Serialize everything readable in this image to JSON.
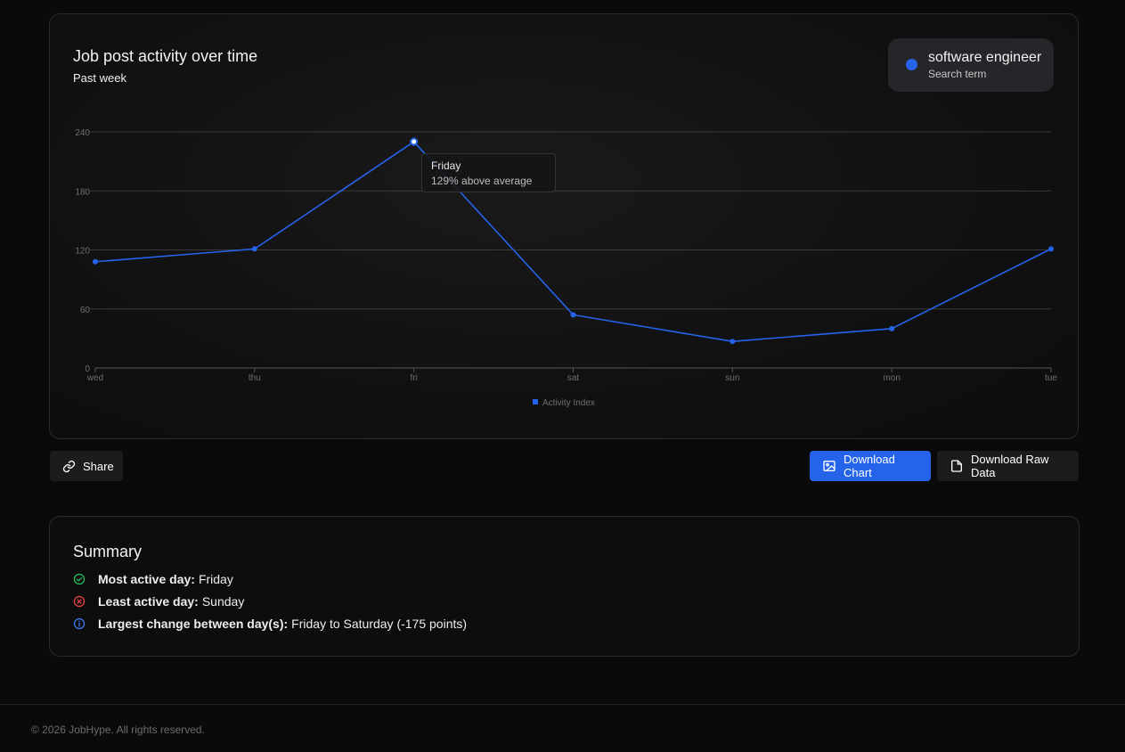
{
  "card": {
    "title": "Job post activity over time",
    "subtitle": "Past week",
    "search_term": "software engineer",
    "search_term_label": "Search term"
  },
  "tooltip": {
    "day": "Friday",
    "value": "129% above average"
  },
  "chart_data": {
    "type": "line",
    "categories": [
      "wed",
      "thu",
      "fri",
      "sat",
      "sun",
      "mon",
      "tue"
    ],
    "series": [
      {
        "name": "Activity Index",
        "values": [
          108,
          121,
          230,
          54,
          27,
          40,
          121
        ]
      }
    ],
    "title": "",
    "xlabel": "",
    "ylabel": "",
    "ylim": [
      0,
      240
    ],
    "yticks": [
      0,
      60,
      120,
      180,
      240
    ],
    "grid": true,
    "legend": "bottom",
    "highlighted_category": "fri",
    "line_color": "#2563eb"
  },
  "actions": {
    "share": "Share",
    "download_chart": "Download Chart",
    "download_raw": "Download Raw Data"
  },
  "summary": {
    "title": "Summary",
    "most_active_label": "Most active day:",
    "most_active_value": "Friday",
    "least_active_label": "Least active day:",
    "least_active_value": "Sunday",
    "largest_change_label": "Largest change between day(s):",
    "largest_change_value": "Friday to Saturday (-175 points)"
  },
  "colors": {
    "accent": "#2563eb",
    "success": "#22c55e",
    "danger": "#ef4444",
    "info": "#3b82f6"
  },
  "footer": {
    "copyright": "© 2026 JobHype. All rights reserved."
  }
}
